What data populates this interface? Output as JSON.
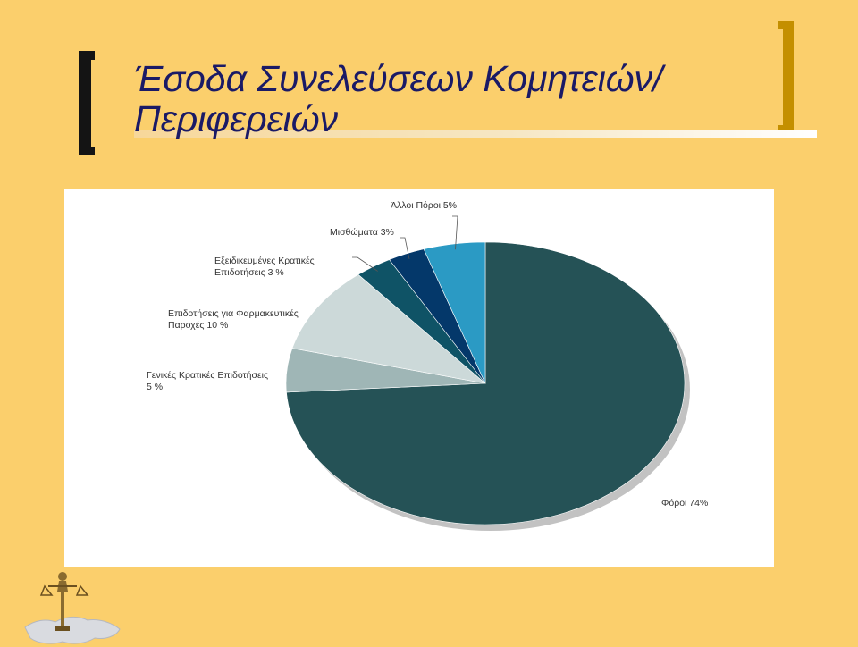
{
  "title": {
    "line1": "Έσοδα Συνελεύσεων Κομητειών/",
    "line2": "Περιφερειών"
  },
  "chart_data": {
    "type": "pie",
    "slices": [
      {
        "label": "Φόροι",
        "value": 74,
        "display": "Φόροι 74%",
        "color": "#255256"
      },
      {
        "label": "Γενικές Κρατικές Επιδοτήσεις",
        "value": 5,
        "display": [
          "Γενικές Κρατικές Επιδοτήσεις",
          "5 %"
        ],
        "color": "#9fb6b6"
      },
      {
        "label": "Επιδοτήσεις για Φαρμακευτικές Παροχές",
        "value": 10,
        "display": [
          "Επιδοτήσεις για Φαρμακευτικές",
          "Παροχές 10 %"
        ],
        "color": "#ccd9d9"
      },
      {
        "label": "Εξειδικευμένες Κρατικές Επιδοτήσεις",
        "value": 3,
        "display": [
          "Εξειδικευμένες Κρατικές",
          "Επιδοτήσεις  3 %"
        ],
        "color": "#0f5366"
      },
      {
        "label": "Μισθώματα",
        "value": 3,
        "display": "Μισθώματα 3%",
        "color": "#04386a"
      },
      {
        "label": "Άλλοι Πόροι",
        "value": 5,
        "display": "Άλλοι Πόροι 5%",
        "color": "#2b9ac4"
      }
    ],
    "colors": {
      "background": "#fbcf6c",
      "title_text": "#1a1a66",
      "label_text": "#333333"
    }
  },
  "icons": {
    "clip_art": "justice-statue-map-icon"
  }
}
